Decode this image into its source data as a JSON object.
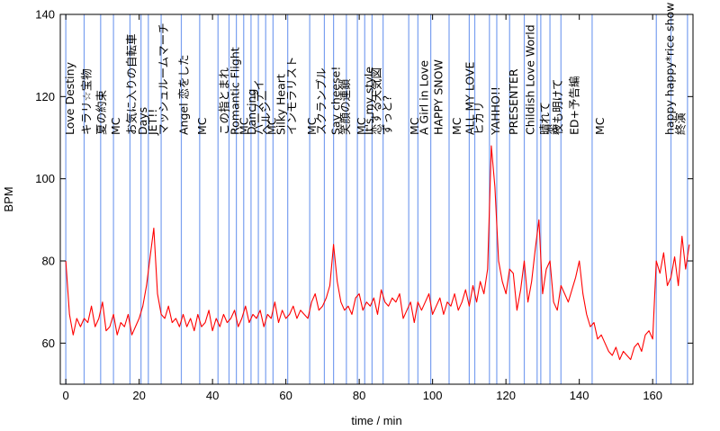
{
  "chart_data": {
    "type": "line",
    "title": "",
    "xlabel": "time / min",
    "ylabel": "BPM",
    "xlim": [
      -1.5,
      171
    ],
    "ylim": [
      50,
      140
    ],
    "xticks": [
      0,
      20,
      40,
      60,
      80,
      100,
      120,
      140,
      160
    ],
    "yticks": [
      60,
      80,
      100,
      120,
      140
    ],
    "series": [
      {
        "name": "BPM",
        "color": "#ff0000",
        "x": [
          0,
          1,
          2,
          3,
          4,
          5,
          6,
          7,
          8,
          9,
          10,
          11,
          12,
          13,
          14,
          15,
          16,
          17,
          18,
          19,
          20,
          21,
          22,
          23,
          24,
          25,
          26,
          27,
          28,
          29,
          30,
          31,
          32,
          33,
          34,
          35,
          36,
          37,
          38,
          39,
          40,
          41,
          42,
          43,
          44,
          45,
          46,
          47,
          48,
          49,
          50,
          51,
          52,
          53,
          54,
          55,
          56,
          57,
          58,
          59,
          60,
          61,
          62,
          63,
          64,
          65,
          66,
          67,
          68,
          69,
          70,
          71,
          72,
          73,
          74,
          75,
          76,
          77,
          78,
          79,
          80,
          81,
          82,
          83,
          84,
          85,
          86,
          87,
          88,
          89,
          90,
          91,
          92,
          93,
          94,
          95,
          96,
          97,
          98,
          99,
          100,
          101,
          102,
          103,
          104,
          105,
          106,
          107,
          108,
          109,
          110,
          111,
          112,
          113,
          114,
          115,
          116,
          117,
          118,
          119,
          120,
          121,
          122,
          123,
          124,
          125,
          126,
          127,
          128,
          129,
          130,
          131,
          132,
          133,
          134,
          135,
          136,
          137,
          138,
          139,
          140,
          141,
          142,
          143,
          144,
          145,
          146,
          147,
          148,
          149,
          150,
          151,
          152,
          153,
          154,
          155,
          156,
          157,
          158,
          159,
          160,
          161,
          162,
          163,
          164,
          165,
          166,
          167,
          168,
          169,
          170
        ],
        "y": [
          80,
          67,
          62,
          66,
          64,
          66,
          65,
          69,
          64,
          66,
          70,
          63,
          64,
          67,
          62,
          65,
          64,
          67,
          62,
          64,
          66,
          69,
          74,
          81,
          88,
          72,
          67,
          66,
          69,
          65,
          66,
          64,
          67,
          64,
          66,
          63,
          67,
          64,
          65,
          68,
          63,
          66,
          64,
          67,
          65,
          66,
          68,
          64,
          66,
          69,
          65,
          67,
          66,
          68,
          64,
          67,
          66,
          70,
          65,
          68,
          66,
          67,
          69,
          66,
          68,
          67,
          66,
          70,
          72,
          68,
          69,
          71,
          74,
          84,
          75,
          70,
          68,
          69,
          67,
          71,
          72,
          68,
          70,
          69,
          71,
          67,
          73,
          70,
          69,
          71,
          70,
          72,
          66,
          68,
          70,
          65,
          70,
          68,
          70,
          72,
          67,
          69,
          71,
          67,
          70,
          69,
          72,
          68,
          70,
          73,
          69,
          74,
          70,
          75,
          72,
          78,
          108,
          98,
          80,
          75,
          72,
          78,
          77,
          68,
          73,
          80,
          70,
          75,
          83,
          90,
          72,
          78,
          80,
          70,
          68,
          74,
          72,
          70,
          73,
          76,
          80,
          72,
          67,
          64,
          65,
          61,
          62,
          60,
          58,
          57,
          59,
          56,
          58,
          57,
          56,
          59,
          60,
          58,
          62,
          63,
          61,
          80,
          77,
          82,
          74,
          76,
          81,
          74,
          86,
          78,
          84
        ]
      }
    ],
    "songs": [
      {
        "t": 0,
        "name": "Love Destiny"
      },
      {
        "t": 4.5,
        "name": "キラリ☆宝物"
      },
      {
        "t": 8.5,
        "name": "夏の約束"
      },
      {
        "t": 12.5,
        "name": "MC"
      },
      {
        "t": 16.8,
        "name": "お気に入りの自転車"
      },
      {
        "t": 19.8,
        "name": "Days"
      },
      {
        "t": 22.5,
        "name": "JET!!"
      },
      {
        "t": 25.5,
        "name": "マッシュルームマーチ"
      },
      {
        "t": 31.0,
        "name": "Angel 恋をした"
      },
      {
        "t": 36.0,
        "name": "MC"
      },
      {
        "t": 42.0,
        "name": "この指とまれ"
      },
      {
        "t": 45.0,
        "name": "Romantic Flight"
      },
      {
        "t": 47.5,
        "name": "MC"
      },
      {
        "t": 49.5,
        "name": "Dancing"
      },
      {
        "t": 51.5,
        "name": "バースデイ"
      },
      {
        "t": 53.5,
        "name": "ヘルシー"
      },
      {
        "t": 55.0,
        "name": "MC"
      },
      {
        "t": 57.5,
        "name": "Silky Heart"
      },
      {
        "t": 60.5,
        "name": "インモラリスト"
      },
      {
        "t": 66.0,
        "name": "MC"
      },
      {
        "t": 68.5,
        "name": "スクランブル"
      },
      {
        "t": 72.5,
        "name": "Say cheese!"
      },
      {
        "t": 75.0,
        "name": "笑顔の連鎖"
      },
      {
        "t": 79.5,
        "name": "MC"
      },
      {
        "t": 81.5,
        "name": "It's my style"
      },
      {
        "t": 83.5,
        "name": "恋する天気図"
      },
      {
        "t": 86.5,
        "name": "ずっと?"
      },
      {
        "t": 94.0,
        "name": "MC"
      },
      {
        "t": 96.5,
        "name": "A Girl in Love"
      },
      {
        "t": 100.5,
        "name": "HAPPY SNOW"
      },
      {
        "t": 105.5,
        "name": "MC"
      },
      {
        "t": 109.0,
        "name": "ALL MY LOVE"
      },
      {
        "t": 111.5,
        "name": "ヒカリ"
      },
      {
        "t": 116.0,
        "name": "YAHHO!!"
      },
      {
        "t": 121.0,
        "name": "PRESENTER"
      },
      {
        "t": 125.5,
        "name": "Childish Love World"
      },
      {
        "t": 129.5,
        "name": "晴れて"
      },
      {
        "t": 131.5,
        "name": "恋"
      },
      {
        "t": 133.0,
        "name": "夜も明けて"
      },
      {
        "t": 137.5,
        "name": "ED+予告編"
      },
      {
        "t": 144.5,
        "name": "MC"
      },
      {
        "t": 163.5,
        "name": "happy happy*rice show"
      },
      {
        "t": 166.5,
        "name": "終演"
      }
    ],
    "marker_times": [
      0,
      5,
      9.5,
      13,
      17.5,
      20.5,
      22.5,
      26,
      31.5,
      36.5,
      41.5,
      44.5,
      46.5,
      48.5,
      50.5,
      52.5,
      54.5,
      56.5,
      60.5,
      66.5,
      70.5,
      73,
      76.5,
      79.5,
      81.5,
      83.5,
      86.5,
      93.5,
      96,
      99.5,
      104.5,
      110,
      111.5,
      115.5,
      117.5,
      121,
      125,
      128.5,
      129.5,
      132,
      135,
      143.5,
      161,
      165,
      169.5
    ]
  }
}
